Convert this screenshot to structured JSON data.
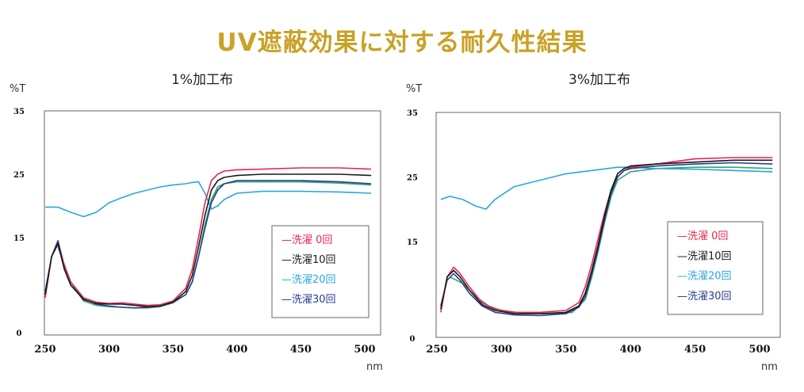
{
  "page": {
    "title": "UV遮蔽効果に対する耐久性結果",
    "title_color": "#c9a227"
  },
  "chart_data": [
    {
      "type": "line",
      "title": "1%加工布",
      "ylabel": "%T",
      "xlabel": "nm",
      "xlim": [
        250,
        510
      ],
      "ylim": [
        0,
        35
      ],
      "x_ticks": [
        250,
        300,
        350,
        400,
        450,
        500
      ],
      "y_ticks": [
        0,
        15,
        25,
        35
      ],
      "grid": false,
      "legend_position": "center-right",
      "series": [
        {
          "name": "洗濯 0回",
          "legend_label": "—洗濯  0回",
          "color": "#e8264e",
          "x": [
            250,
            255,
            260,
            265,
            270,
            280,
            290,
            300,
            310,
            320,
            330,
            340,
            350,
            360,
            365,
            370,
            375,
            380,
            385,
            390,
            400,
            420,
            450,
            480,
            505
          ],
          "y": [
            5.5,
            12.0,
            14.5,
            10.5,
            8.0,
            5.5,
            4.8,
            4.6,
            4.7,
            4.5,
            4.3,
            4.4,
            5.0,
            7.0,
            10.0,
            15.0,
            20.5,
            24.0,
            25.0,
            25.5,
            25.7,
            25.8,
            26.0,
            26.0,
            25.8
          ]
        },
        {
          "name": "洗濯10回",
          "legend_label": "—洗濯10回",
          "color": "#1a1a1a",
          "x": [
            250,
            255,
            260,
            265,
            270,
            280,
            290,
            300,
            310,
            320,
            330,
            340,
            350,
            360,
            365,
            370,
            375,
            380,
            385,
            390,
            400,
            420,
            450,
            480,
            505
          ],
          "y": [
            6.0,
            12.0,
            14.0,
            10.0,
            7.5,
            5.2,
            4.6,
            4.5,
            4.5,
            4.3,
            4.1,
            4.2,
            4.8,
            6.5,
            9.0,
            13.5,
            18.5,
            22.5,
            24.0,
            24.5,
            24.8,
            25.0,
            25.0,
            25.0,
            24.8
          ]
        },
        {
          "name": "洗濯20回",
          "legend_label": "—洗濯20回",
          "color": "#2aa6de",
          "x": [
            250,
            260,
            270,
            280,
            290,
            300,
            310,
            320,
            330,
            340,
            350,
            360,
            365,
            370,
            375,
            380,
            385,
            390,
            400,
            420,
            450,
            480,
            505
          ],
          "y": [
            19.8,
            19.8,
            19.0,
            18.3,
            19.0,
            20.5,
            21.3,
            22.0,
            22.5,
            23.0,
            23.3,
            23.5,
            23.7,
            23.8,
            22.0,
            19.5,
            20.0,
            21.0,
            22.0,
            22.3,
            22.3,
            22.2,
            22.0
          ]
        },
        {
          "name": "洗濯30回",
          "legend_label": "—洗濯30回",
          "color": "#283d8c",
          "x": [
            250,
            255,
            260,
            265,
            270,
            280,
            290,
            300,
            310,
            320,
            330,
            340,
            350,
            360,
            365,
            370,
            375,
            380,
            385,
            390,
            400,
            420,
            450,
            480,
            505
          ],
          "y": [
            6.5,
            12.0,
            14.5,
            10.0,
            7.5,
            5.3,
            4.5,
            4.2,
            4.0,
            3.9,
            4.0,
            4.2,
            4.8,
            6.0,
            8.0,
            12.0,
            16.5,
            20.5,
            22.5,
            23.5,
            24.0,
            24.0,
            24.0,
            23.8,
            23.5
          ]
        }
      ],
      "extra_lines": [
        {
          "color": "#2fa870",
          "x": [
            260,
            270,
            280,
            290,
            300,
            310,
            320,
            330,
            340,
            350,
            360,
            365,
            370,
            375,
            380,
            385,
            390,
            400,
            420,
            450,
            480,
            505
          ],
          "y": [
            13.5,
            8.0,
            5.0,
            4.3,
            4.1,
            4.0,
            3.9,
            3.9,
            4.1,
            4.7,
            6.0,
            8.0,
            12.0,
            17.0,
            21.0,
            23.0,
            23.5,
            23.8,
            23.8,
            23.8,
            23.6,
            23.3
          ]
        }
      ]
    },
    {
      "type": "line",
      "title": "3%加工布",
      "ylabel": "%T",
      "xlabel": "nm",
      "xlim": [
        250,
        510
      ],
      "ylim": [
        0,
        35
      ],
      "x_ticks": [
        250,
        300,
        350,
        400,
        450,
        500
      ],
      "y_ticks": [
        0,
        15,
        25,
        35
      ],
      "grid": false,
      "legend_position": "center-right",
      "series": [
        {
          "name": "洗濯 0回",
          "legend_label": "—洗濯  0回",
          "color": "#e8264e",
          "x": [
            253,
            258,
            263,
            268,
            275,
            285,
            295,
            310,
            330,
            350,
            360,
            365,
            370,
            375,
            380,
            385,
            390,
            395,
            400,
            420,
            450,
            480,
            510
          ],
          "y": [
            4.0,
            9.5,
            11.0,
            10.0,
            8.0,
            5.5,
            4.5,
            4.0,
            4.0,
            4.3,
            5.5,
            8.0,
            11.5,
            15.5,
            19.5,
            23.0,
            25.0,
            26.0,
            26.5,
            27.0,
            27.8,
            28.0,
            28.0
          ]
        },
        {
          "name": "洗濯10回",
          "legend_label": "—洗濯10回",
          "color": "#1a1a1a",
          "x": [
            253,
            258,
            263,
            268,
            275,
            285,
            295,
            310,
            330,
            350,
            360,
            365,
            370,
            375,
            380,
            385,
            390,
            395,
            400,
            420,
            450,
            480,
            510
          ],
          "y": [
            4.5,
            9.5,
            10.5,
            9.5,
            7.5,
            5.2,
            4.3,
            3.8,
            3.8,
            4.0,
            5.0,
            7.0,
            10.5,
            14.5,
            19.0,
            23.0,
            25.5,
            26.3,
            26.7,
            27.0,
            27.3,
            27.6,
            27.6
          ]
        },
        {
          "name": "洗濯20回",
          "legend_label": "—洗濯20回",
          "color": "#2aa6de",
          "x": [
            253,
            260,
            270,
            280,
            288,
            295,
            310,
            330,
            350,
            370,
            390,
            400,
            420,
            450,
            480,
            510
          ],
          "y": [
            21.5,
            22.0,
            21.5,
            20.5,
            20.0,
            21.5,
            23.5,
            24.5,
            25.5,
            26.0,
            26.5,
            26.5,
            26.3,
            26.2,
            26.0,
            25.8
          ]
        },
        {
          "name": "洗濯30回",
          "legend_label": "—洗濯30回",
          "color": "#283d8c",
          "x": [
            253,
            258,
            263,
            268,
            275,
            285,
            295,
            310,
            330,
            350,
            360,
            365,
            370,
            375,
            380,
            385,
            390,
            395,
            400,
            420,
            450,
            480,
            510
          ],
          "y": [
            5.0,
            9.0,
            10.0,
            9.0,
            7.0,
            5.0,
            4.0,
            3.6,
            3.5,
            3.8,
            4.8,
            6.5,
            10.0,
            14.0,
            18.5,
            22.5,
            25.0,
            26.0,
            26.3,
            26.7,
            27.0,
            27.2,
            27.0
          ]
        }
      ],
      "extra_lines": [
        {
          "color": "#2fa870",
          "x": [
            260,
            270,
            280,
            290,
            300,
            320,
            340,
            355,
            365,
            370,
            375,
            380,
            385,
            390,
            400,
            420,
            450,
            480,
            510
          ],
          "y": [
            9.5,
            8.5,
            6.5,
            5.0,
            4.3,
            3.8,
            3.8,
            4.0,
            6.0,
            9.5,
            13.5,
            18.0,
            22.0,
            24.5,
            25.8,
            26.3,
            26.5,
            26.5,
            26.3
          ]
        }
      ]
    }
  ]
}
